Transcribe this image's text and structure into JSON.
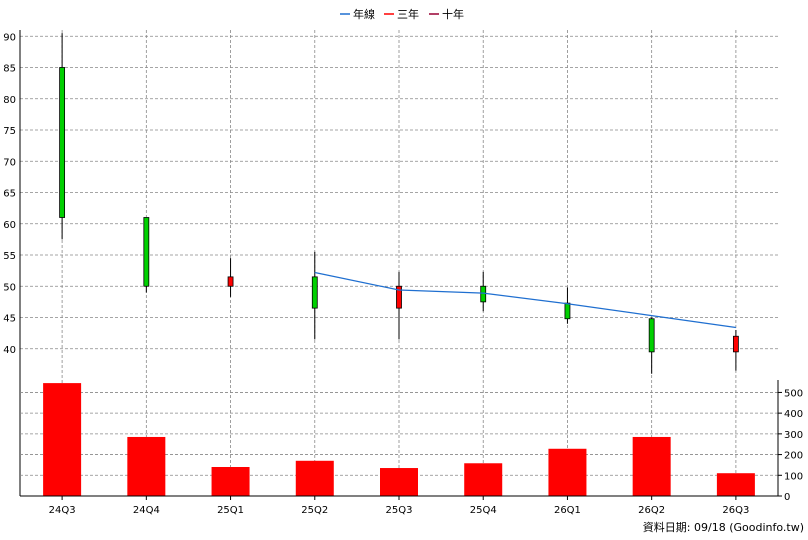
{
  "chart_data": {
    "type": "candlestick",
    "legend": {
      "placement": "top-center",
      "entries": [
        {
          "label": "年線",
          "color": "#1f6fd0"
        },
        {
          "label": "三年",
          "color": "#ff0000"
        },
        {
          "label": "十年",
          "color": "#990033"
        }
      ]
    },
    "categories": [
      "24Q3",
      "24Q4",
      "25Q1",
      "25Q2",
      "25Q3",
      "25Q4",
      "26Q1",
      "26Q2",
      "26Q3"
    ],
    "price": {
      "ylim": [
        35,
        91
      ],
      "yticks": [
        40,
        45,
        50,
        55,
        60,
        65,
        70,
        75,
        80,
        85,
        90
      ],
      "candles": [
        {
          "open": 61,
          "high": 90.5,
          "low": 57.5,
          "close": 85,
          "color": "green"
        },
        {
          "open": 50,
          "high": 61,
          "low": 49,
          "close": 61,
          "color": "green"
        },
        {
          "open": 51.5,
          "high": 54.5,
          "low": 48.3,
          "close": 50,
          "color": "red"
        },
        {
          "open": 46.5,
          "high": 55.5,
          "low": 41.5,
          "close": 51.5,
          "color": "green"
        },
        {
          "open": 50,
          "high": 52.3,
          "low": 41.5,
          "close": 46.5,
          "color": "red"
        },
        {
          "open": 47.5,
          "high": 52.3,
          "low": 46,
          "close": 50,
          "color": "green"
        },
        {
          "open": 44.8,
          "high": 49.8,
          "low": 44,
          "close": 47.3,
          "color": "green"
        },
        {
          "open": 39.5,
          "high": 45,
          "low": 36,
          "close": 44.8,
          "color": "green"
        },
        {
          "open": 42,
          "high": 43,
          "low": 36.5,
          "close": 39.5,
          "color": "red"
        }
      ],
      "annual_line": [
        null,
        null,
        null,
        52.2,
        49.4,
        48.9,
        47.2,
        45.3,
        43.4
      ]
    },
    "volume": {
      "ylim": [
        0,
        560
      ],
      "yticks": [
        0,
        100,
        200,
        300,
        400,
        500
      ],
      "values": [
        545,
        285,
        140,
        170,
        135,
        158,
        228,
        285,
        110
      ],
      "color": "#ff0000"
    },
    "grid": true
  },
  "credit": "資料日期: 09/18  (Goodinfo.tw)"
}
